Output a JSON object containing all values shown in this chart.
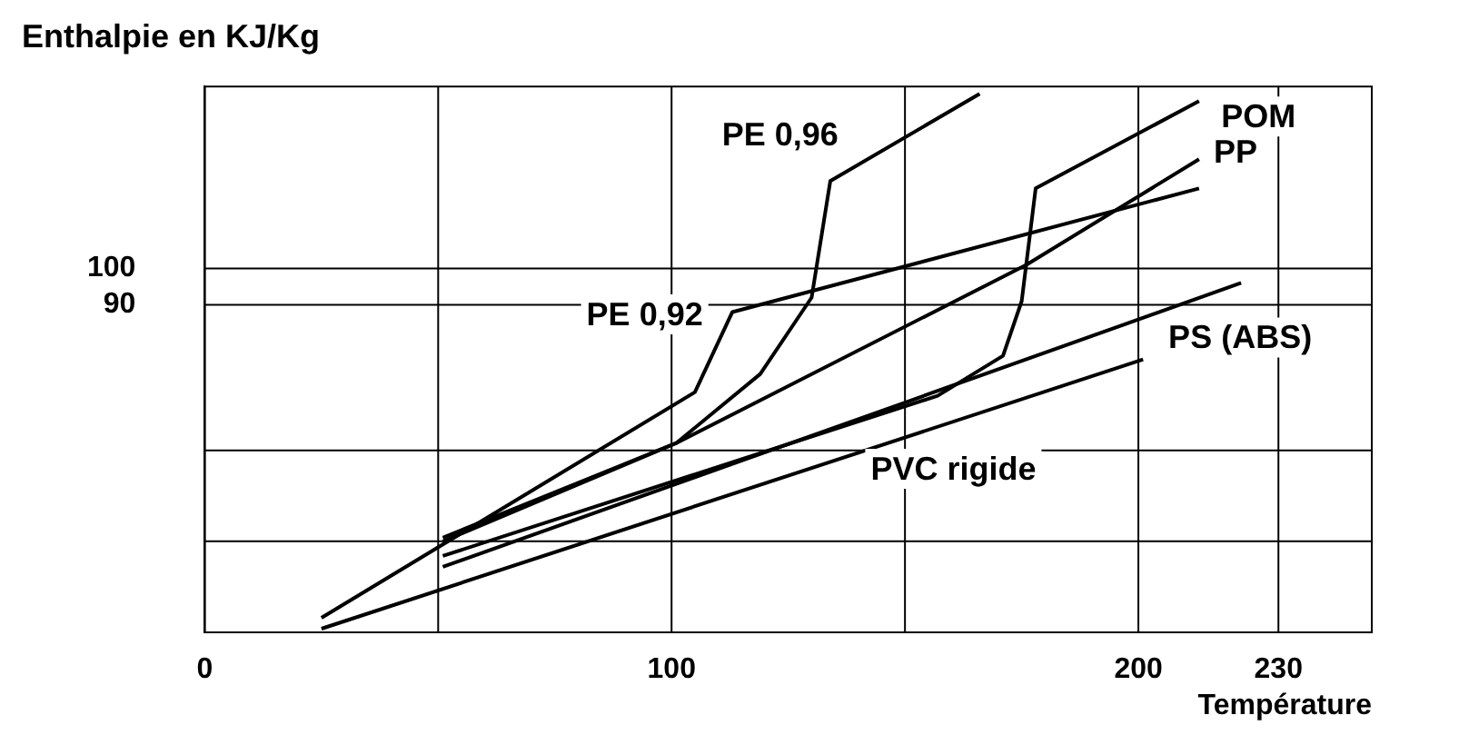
{
  "chart_data": {
    "type": "line",
    "ylabel": "Enthalpie en KJ/Kg",
    "xlabel": "Température",
    "xlim": [
      0,
      250
    ],
    "xticks": [
      0,
      {
        "value": 50,
        "label": null
      },
      100,
      {
        "value": 150,
        "label": null
      },
      200,
      230
    ],
    "ylim": [
      0,
      150
    ],
    "yticks": [
      {
        "value": 25,
        "label": null
      },
      {
        "value": 50,
        "label": null
      },
      90,
      100
    ],
    "grid": true,
    "legend": false,
    "marker": "none",
    "line_style": "solid",
    "series": [
      {
        "name": "PE 0,96",
        "color": "#000000",
        "x": [
          51,
          101,
          119,
          130,
          134,
          166
        ],
        "values": [
          25,
          52,
          71,
          92,
          124,
          148
        ]
      },
      {
        "name": "PE 0,92",
        "color": "#000000",
        "x": [
          25,
          105,
          113,
          213
        ],
        "values": [
          4,
          66,
          88,
          122
        ]
      },
      {
        "name": "POM",
        "color": "#000000",
        "x": [
          51,
          157,
          171,
          175,
          178,
          213
        ],
        "values": [
          21,
          65,
          76,
          91,
          122,
          146
        ]
      },
      {
        "name": "PP",
        "color": "#000000",
        "x": [
          51,
          101,
          176,
          213
        ],
        "values": [
          26,
          52,
          101,
          130
        ]
      },
      {
        "name": "PS (ABS)",
        "color": "#000000",
        "x": [
          51,
          222
        ],
        "values": [
          18,
          96
        ]
      },
      {
        "name": "PVC rigide",
        "color": "#000000",
        "x": [
          25,
          201
        ],
        "values": [
          1,
          75
        ]
      }
    ]
  }
}
